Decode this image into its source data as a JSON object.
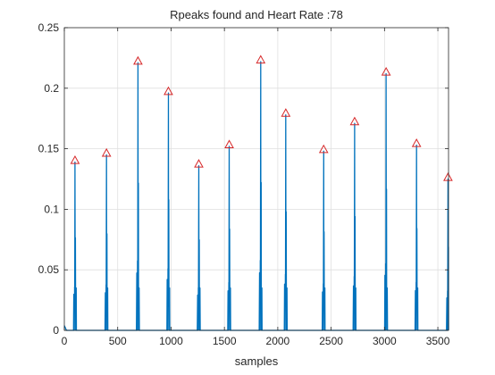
{
  "chart_data": {
    "type": "line",
    "title": "Rpeaks found and Heart Rate :78",
    "xlabel": "samples",
    "ylabel": "",
    "xlim": [
      0,
      3600
    ],
    "ylim": [
      0,
      0.25
    ],
    "grid": true,
    "x_ticks": [
      0,
      500,
      1000,
      1500,
      2000,
      2500,
      3000,
      3500
    ],
    "y_ticks": [
      0,
      0.05,
      0.1,
      0.15,
      0.2,
      0.25
    ],
    "x_tick_labels": [
      "0",
      "500",
      "1000",
      "1500",
      "2000",
      "2500",
      "3000",
      "3500"
    ],
    "y_tick_labels": [
      "0",
      "0.05",
      "0.1",
      "0.15",
      "0.2",
      "0.25"
    ],
    "series": [
      {
        "type": "line",
        "color": "#0072bd",
        "peaks": [
          {
            "x": 100,
            "y": 0.139
          },
          {
            "x": 395,
            "y": 0.145
          },
          {
            "x": 690,
            "y": 0.221
          },
          {
            "x": 975,
            "y": 0.196
          },
          {
            "x": 1260,
            "y": 0.136
          },
          {
            "x": 1545,
            "y": 0.152
          },
          {
            "x": 1840,
            "y": 0.222
          },
          {
            "x": 2075,
            "y": 0.178
          },
          {
            "x": 2430,
            "y": 0.148
          },
          {
            "x": 2720,
            "y": 0.171
          },
          {
            "x": 3015,
            "y": 0.212
          },
          {
            "x": 3300,
            "y": 0.153
          },
          {
            "x": 3595,
            "y": 0.125
          }
        ]
      },
      {
        "type": "scatter",
        "marker": "triangle",
        "color": "#d62728",
        "points": [
          {
            "x": 100,
            "y": 0.139
          },
          {
            "x": 395,
            "y": 0.145
          },
          {
            "x": 690,
            "y": 0.221
          },
          {
            "x": 975,
            "y": 0.196
          },
          {
            "x": 1260,
            "y": 0.136
          },
          {
            "x": 1545,
            "y": 0.152
          },
          {
            "x": 1840,
            "y": 0.222
          },
          {
            "x": 2075,
            "y": 0.178
          },
          {
            "x": 2430,
            "y": 0.148
          },
          {
            "x": 2720,
            "y": 0.171
          },
          {
            "x": 3015,
            "y": 0.212
          },
          {
            "x": 3300,
            "y": 0.153
          },
          {
            "x": 3595,
            "y": 0.125
          }
        ]
      }
    ]
  }
}
